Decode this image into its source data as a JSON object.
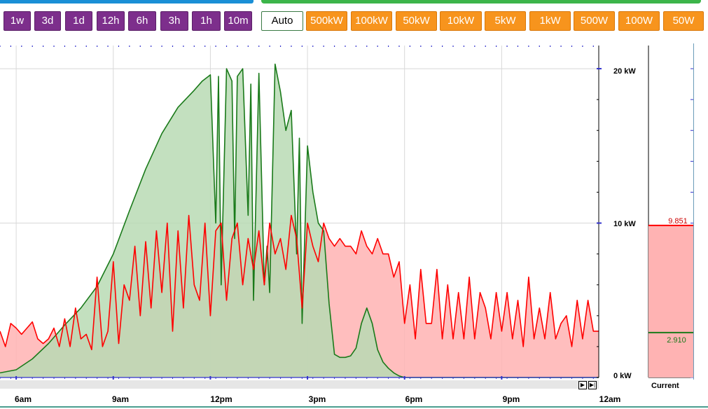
{
  "time_buttons": [
    "1w",
    "3d",
    "1d",
    "12h",
    "6h",
    "3h",
    "1h",
    "10m"
  ],
  "auto_button": "Auto",
  "scale_buttons": [
    "500kW",
    "100kW",
    "50kW",
    "10kW",
    "5kW",
    "1kW",
    "500W",
    "100W",
    "50W"
  ],
  "x_tick_labels": [
    "6am",
    "9am",
    "12pm",
    "3pm",
    "6pm",
    "9pm",
    "12am"
  ],
  "y_tick_labels": [
    "20 kW",
    "10 kW",
    "0 kW"
  ],
  "current": {
    "label": "Current",
    "red_value": "9.851",
    "green_value": "2.910"
  },
  "colors": {
    "consumption": "#ff0000",
    "consumption_fill": "#ffb3b3",
    "solar": "#1a7a1a",
    "solar_fill": "#b8dbb4",
    "time_btn": "#7d2f8c",
    "scale_btn": "#f7941d"
  },
  "chart_data": {
    "type": "area",
    "xlabel": "",
    "ylabel": "",
    "x_range": [
      "05:30",
      "00:00"
    ],
    "ylim": [
      0,
      21.5
    ],
    "y_unit": "kW",
    "series": [
      {
        "color": "#1a7a1a",
        "x": [
          "05:30",
          "06:00",
          "06:30",
          "07:00",
          "07:30",
          "08:00",
          "08:30",
          "09:00",
          "09:30",
          "10:00",
          "10:30",
          "11:00",
          "11:30",
          "11:45",
          "12:00",
          "12:10",
          "12:15",
          "12:20",
          "12:30",
          "12:40",
          "12:45",
          "12:50",
          "13:00",
          "13:10",
          "13:15",
          "13:20",
          "13:30",
          "13:40",
          "13:45",
          "13:50",
          "14:00",
          "14:10",
          "14:20",
          "14:30",
          "14:40",
          "14:45",
          "14:50",
          "15:00",
          "15:10",
          "15:20",
          "15:30",
          "15:40",
          "15:50",
          "16:00",
          "16:10",
          "16:20",
          "16:30",
          "16:40",
          "16:50",
          "17:00",
          "17:10",
          "17:20",
          "17:30",
          "17:40",
          "17:50",
          "18:00",
          "18:10",
          "18:20",
          "18:30",
          "18:40",
          "18:50",
          "19:00",
          "19:30",
          "20:00",
          "20:30",
          "21:00",
          "21:30",
          "22:00",
          "22:30",
          "23:00",
          "23:30",
          "00:00"
        ],
        "values": [
          0.3,
          0.5,
          1.2,
          2.2,
          3.4,
          4.5,
          5.9,
          8.0,
          10.8,
          13.5,
          15.8,
          17.5,
          18.6,
          19.2,
          19.6,
          10.0,
          19.5,
          6.0,
          20.0,
          19.2,
          9.0,
          19.5,
          20.0,
          10.5,
          19.0,
          5.0,
          19.7,
          6.0,
          8.5,
          5.5,
          20.3,
          18.5,
          16.0,
          17.3,
          8.0,
          15.5,
          3.5,
          15.0,
          12.0,
          10.0,
          9.5,
          4.8,
          1.5,
          1.3,
          1.3,
          1.4,
          1.9,
          3.5,
          4.5,
          3.5,
          1.8,
          1.0,
          0.6,
          0.3,
          0.1,
          0.0,
          0.0,
          0.0,
          0.0,
          0.0,
          0.0,
          0.0,
          0.0,
          0.0,
          0.0,
          0.0,
          0.0,
          0.0,
          0.0,
          0.0,
          0.0,
          0.0
        ]
      },
      {
        "color": "#ff0000",
        "x": [
          "05:30",
          "05:40",
          "05:50",
          "06:00",
          "06:10",
          "06:20",
          "06:30",
          "06:40",
          "06:50",
          "07:00",
          "07:10",
          "07:20",
          "07:30",
          "07:40",
          "07:50",
          "08:00",
          "08:10",
          "08:20",
          "08:30",
          "08:40",
          "08:50",
          "09:00",
          "09:10",
          "09:20",
          "09:30",
          "09:40",
          "09:50",
          "10:00",
          "10:10",
          "10:20",
          "10:30",
          "10:40",
          "10:50",
          "11:00",
          "11:10",
          "11:20",
          "11:30",
          "11:40",
          "11:50",
          "12:00",
          "12:10",
          "12:20",
          "12:30",
          "12:40",
          "12:50",
          "13:00",
          "13:10",
          "13:20",
          "13:30",
          "13:40",
          "13:50",
          "14:00",
          "14:10",
          "14:20",
          "14:30",
          "14:40",
          "14:50",
          "15:00",
          "15:10",
          "15:20",
          "15:30",
          "15:40",
          "15:50",
          "16:00",
          "16:10",
          "16:20",
          "16:30",
          "16:40",
          "16:50",
          "17:00",
          "17:10",
          "17:20",
          "17:30",
          "17:40",
          "17:50",
          "18:00",
          "18:10",
          "18:20",
          "18:30",
          "18:40",
          "18:50",
          "19:00",
          "19:10",
          "19:20",
          "19:30",
          "19:40",
          "19:50",
          "20:00",
          "20:10",
          "20:20",
          "20:30",
          "20:40",
          "20:50",
          "21:00",
          "21:10",
          "21:20",
          "21:30",
          "21:40",
          "21:50",
          "22:00",
          "22:10",
          "22:20",
          "22:30",
          "22:40",
          "22:50",
          "23:00",
          "23:10",
          "23:20",
          "23:30",
          "23:40",
          "23:50",
          "00:00"
        ],
        "values": [
          3.0,
          2.0,
          3.5,
          3.2,
          2.8,
          3.2,
          3.6,
          2.5,
          2.2,
          2.5,
          3.2,
          2.0,
          3.8,
          2.0,
          4.5,
          2.5,
          2.8,
          1.8,
          6.5,
          2.0,
          3.0,
          7.5,
          2.2,
          6.0,
          5.0,
          8.5,
          4.0,
          8.8,
          4.5,
          9.5,
          5.5,
          10.0,
          3.0,
          9.5,
          4.5,
          10.5,
          6.0,
          5.0,
          10.0,
          4.0,
          9.5,
          10.0,
          5.0,
          9.0,
          10.0,
          6.0,
          9.0,
          7.0,
          9.5,
          6.0,
          10.0,
          8.0,
          9.0,
          7.0,
          10.5,
          9.0,
          4.5,
          10.0,
          8.5,
          7.5,
          10.0,
          9.0,
          8.5,
          9.0,
          8.5,
          8.5,
          8.0,
          9.5,
          8.5,
          8.0,
          9.0,
          8.0,
          8.0,
          6.5,
          7.5,
          3.5,
          6.0,
          2.5,
          7.0,
          3.5,
          3.5,
          7.0,
          2.5,
          6.0,
          2.5,
          5.5,
          2.5,
          6.5,
          2.5,
          5.5,
          4.5,
          2.5,
          5.5,
          3.0,
          5.5,
          2.5,
          5.0,
          2.0,
          6.5,
          2.5,
          4.5,
          2.5,
          5.5,
          2.5,
          3.5,
          4.0,
          2.0,
          5.0,
          2.5,
          5.0,
          3.0,
          3.0
        ]
      }
    ]
  }
}
